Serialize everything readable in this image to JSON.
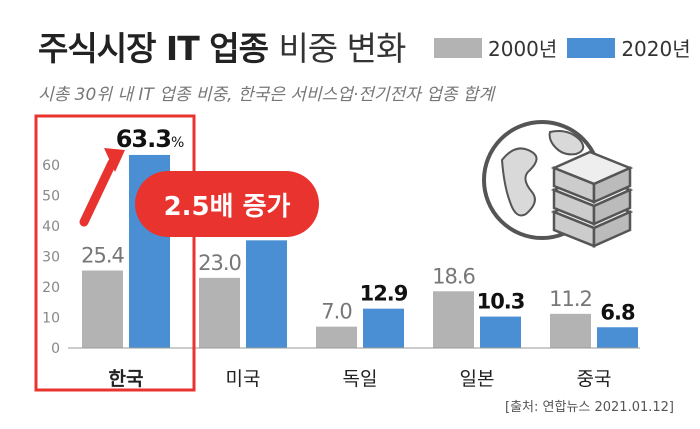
{
  "title_bold": "주식시장 IT 업종",
  "title_light": "비중 변화",
  "subtitle": "시총 30위 내 IT 업종 비중, 한국은 서비스업·전기전자 업종 합계",
  "source": "[출처: 연합뉴스 2021.01.12]",
  "colors": {
    "y2000": "#b3b3b3",
    "y2020": "#4a8fd4",
    "highlight": "#e8332e",
    "badge": "#e8332e"
  },
  "callout": "2.5배 증가",
  "icon": "globe-and-money-stack-icon",
  "chart_data": {
    "type": "bar",
    "categories": [
      "한국",
      "미국",
      "독일",
      "일본",
      "중국"
    ],
    "series": [
      {
        "name": "2000년",
        "values": [
          25.4,
          23.0,
          7.0,
          18.6,
          11.2
        ]
      },
      {
        "name": "2020년",
        "values": [
          63.3,
          35.3,
          12.9,
          10.3,
          6.8
        ]
      }
    ],
    "value_labels": {
      "2000년": [
        "25.4",
        "23.0",
        "7.0",
        "18.6",
        "11.2"
      ],
      "2020년": [
        "63.3",
        "35.3",
        "12.9",
        "10.3",
        "6.8"
      ]
    },
    "unit_label": "%",
    "yticks": [
      0,
      10,
      20,
      30,
      40,
      50,
      60
    ],
    "ylim": [
      0,
      65
    ],
    "grid": false,
    "legend": "top-right"
  }
}
